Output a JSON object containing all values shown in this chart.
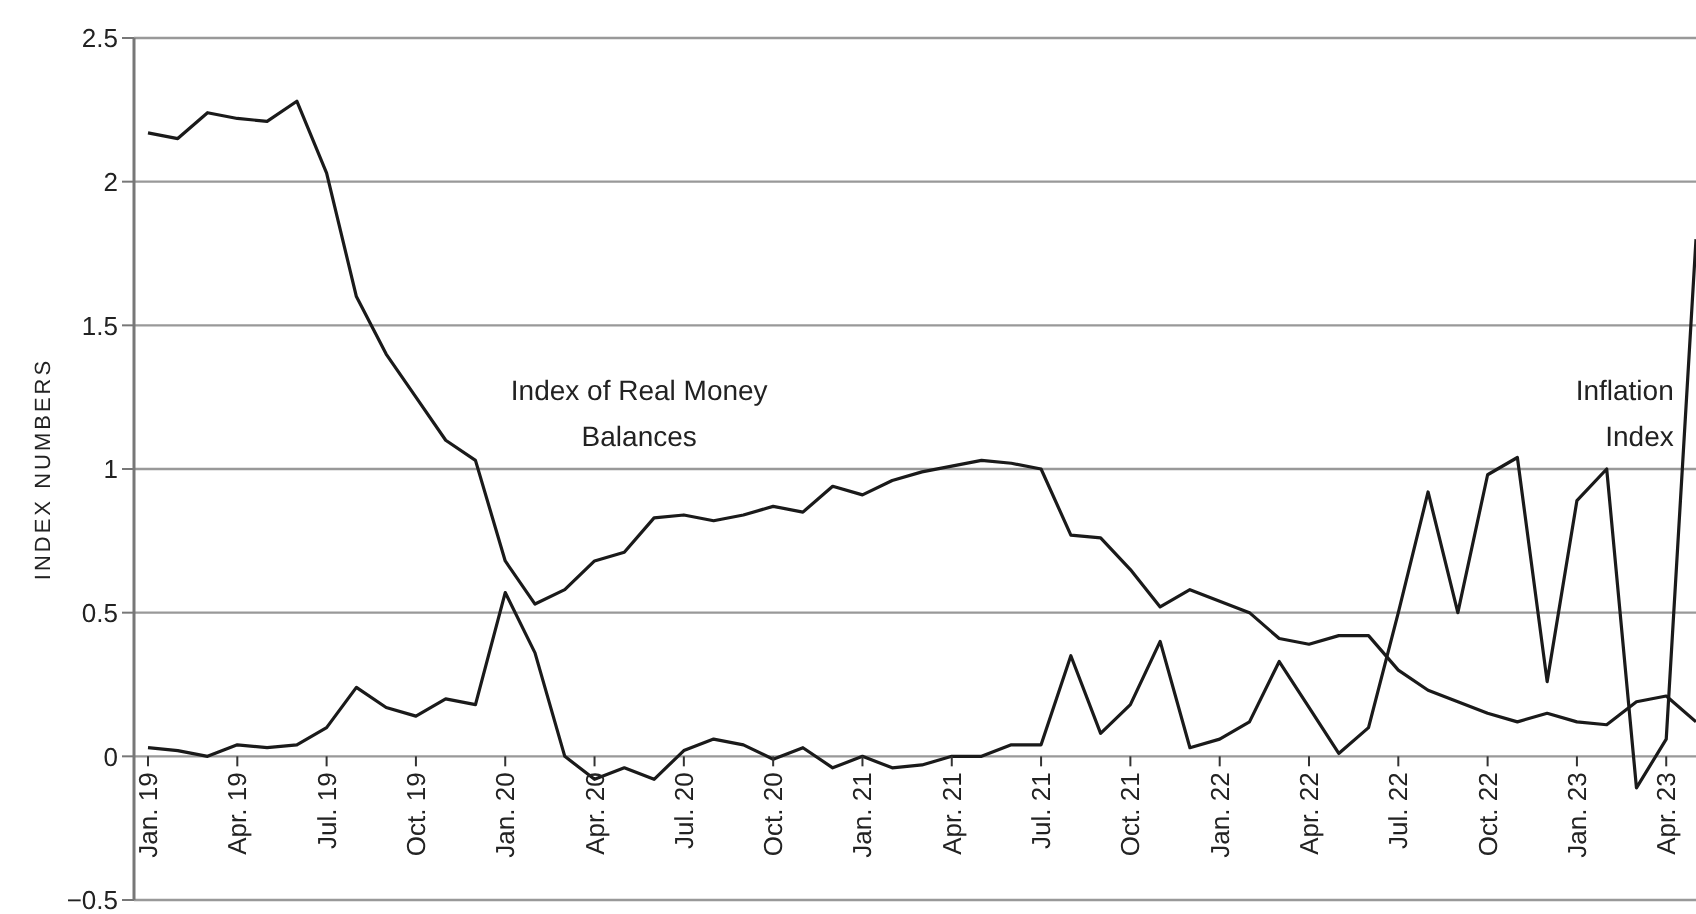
{
  "chart_data": {
    "type": "line",
    "ylabel": "INDEX NUMBERS",
    "categories": [
      "Jan. 19",
      null,
      null,
      "Apr. 19",
      null,
      null,
      "Jul. 19",
      null,
      null,
      "Oct. 19",
      null,
      null,
      "Jan. 20",
      null,
      null,
      "Apr. 20",
      null,
      null,
      "Jul. 20",
      null,
      null,
      "Oct. 20",
      null,
      null,
      "Jan. 21",
      null,
      null,
      "Apr. 21",
      null,
      null,
      "Jul. 21",
      null,
      null,
      "Oct. 21",
      null,
      null,
      "Jan. 22",
      null,
      null,
      "Apr. 22",
      null,
      null,
      "Jul. 22",
      null,
      null,
      "Oct. 22",
      null,
      null,
      "Jan. 23",
      null,
      null,
      "Apr. 23",
      null
    ],
    "series": [
      {
        "name": "Index of Real Money Balances",
        "color": "#1a1a1a",
        "values": [
          2.17,
          2.15,
          2.24,
          2.22,
          2.21,
          2.28,
          2.03,
          1.6,
          1.4,
          1.25,
          1.1,
          1.03,
          0.68,
          0.53,
          0.58,
          0.68,
          0.71,
          0.83,
          0.84,
          0.82,
          0.84,
          0.87,
          0.85,
          0.94,
          0.91,
          0.96,
          0.99,
          1.01,
          1.03,
          1.02,
          1.0,
          0.77,
          0.76,
          0.65,
          0.52,
          0.58,
          0.54,
          0.5,
          0.41,
          0.39,
          0.42,
          0.42,
          0.3,
          0.23,
          0.19,
          0.15,
          0.12,
          0.15,
          0.12,
          0.11,
          0.19,
          0.21,
          0.12
        ]
      },
      {
        "name": "Inflation Index",
        "color": "#1a1a1a",
        "values": [
          0.03,
          0.02,
          0.0,
          0.04,
          0.03,
          0.04,
          0.1,
          0.24,
          0.17,
          0.14,
          0.2,
          0.18,
          0.57,
          0.36,
          0.0,
          -0.08,
          -0.04,
          -0.08,
          0.02,
          0.06,
          0.04,
          -0.01,
          0.03,
          -0.04,
          0.0,
          -0.04,
          -0.03,
          0.0,
          0.0,
          0.04,
          0.04,
          0.35,
          0.08,
          0.18,
          0.4,
          0.03,
          0.06,
          0.12,
          0.33,
          0.17,
          0.01,
          0.1,
          0.5,
          0.92,
          0.5,
          0.98,
          1.04,
          0.26,
          0.89,
          1.0,
          -0.11,
          0.06,
          1.8
        ]
      }
    ],
    "ylim": [
      -0.5,
      2.5
    ],
    "yticks": [
      {
        "value": -0.5,
        "label": "−0.5"
      },
      0,
      0.5,
      1,
      1.5,
      2,
      2.5
    ],
    "grid": "y",
    "marker": "none",
    "line_style": "solid"
  }
}
